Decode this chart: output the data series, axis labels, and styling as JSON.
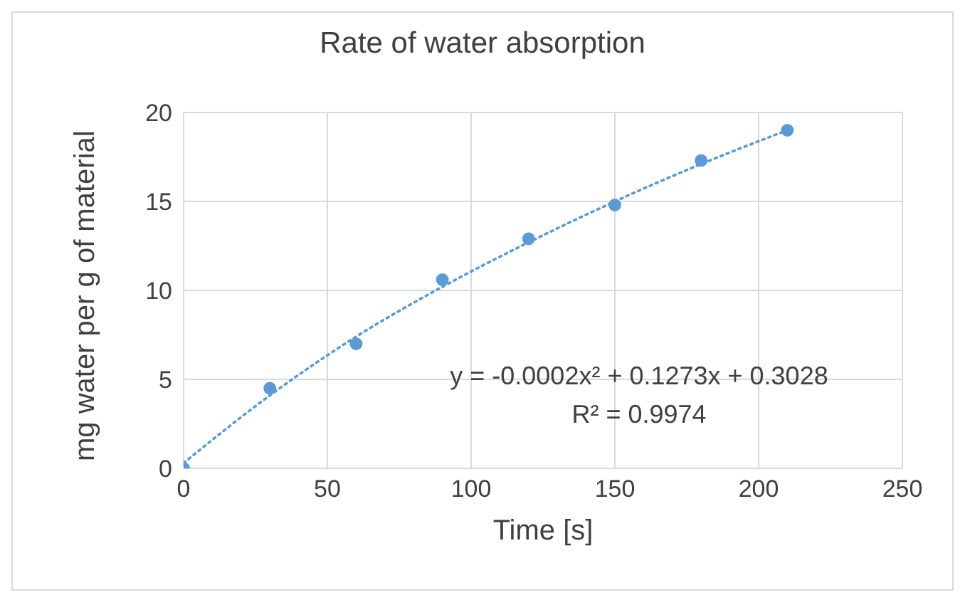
{
  "chart_data": {
    "type": "scatter",
    "title": "Rate of water absorption",
    "xlabel": "Time [s]",
    "ylabel": "mg water per g of material",
    "xlim": [
      0,
      250
    ],
    "xticks": [
      0,
      50,
      100,
      150,
      200,
      250
    ],
    "ylim": [
      0,
      20
    ],
    "yticks": [
      0,
      5,
      10,
      15,
      20
    ],
    "grid": true,
    "legend": false,
    "series": [
      {
        "color": "#5b9bd5",
        "marker": "circle",
        "x": [
          0,
          30,
          60,
          90,
          120,
          150,
          180,
          210
        ],
        "values": [
          0,
          4.5,
          7.0,
          10.6,
          12.9,
          14.8,
          17.3,
          19.0
        ]
      },
      {
        "type": "line",
        "color": "#5b9bd5",
        "marker": "none",
        "line_style": "dotted",
        "x": [
          0,
          30,
          60,
          90,
          120,
          150,
          180,
          210
        ],
        "values": [
          0.3,
          4.1,
          7.4,
          10.2,
          12.7,
          15.0,
          17.1,
          19.0
        ]
      }
    ],
    "annotations": [
      "y = -0.0002x² + 0.1273x + 0.3028",
      "R² = 0.9974"
    ]
  }
}
